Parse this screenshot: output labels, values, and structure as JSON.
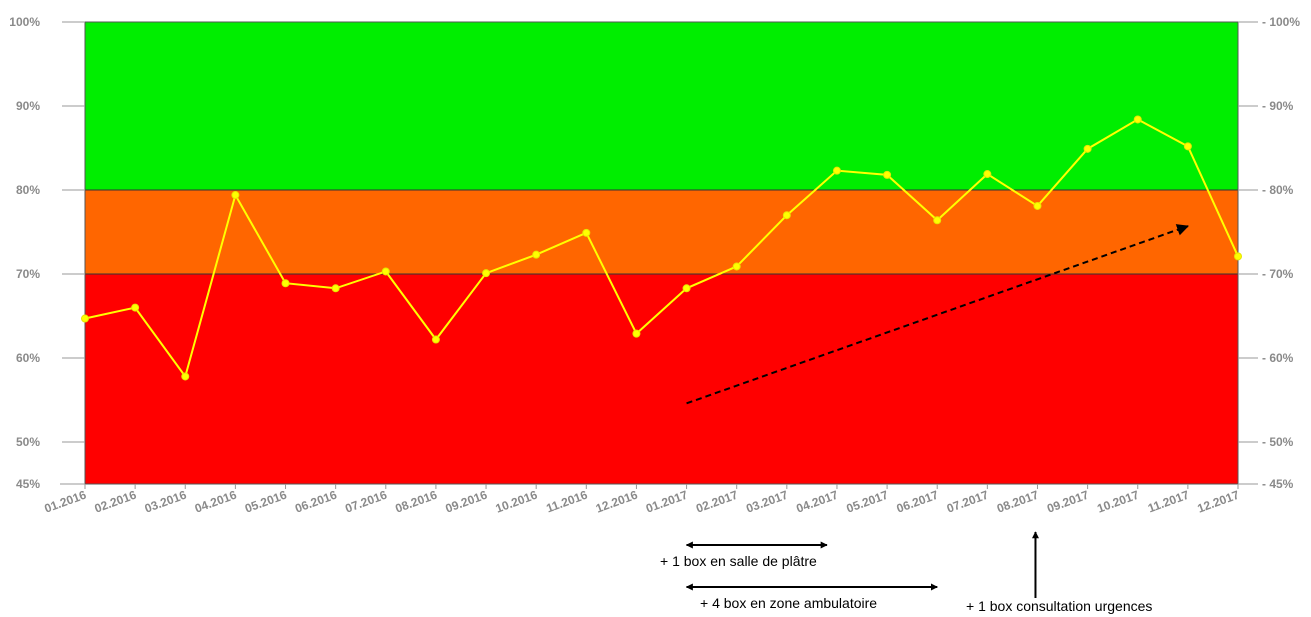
{
  "chart_data": {
    "type": "line",
    "title": "",
    "xlabel": "",
    "ylabel": "",
    "ylim": [
      45,
      100
    ],
    "yticks": [
      "45%",
      "50%",
      "60%",
      "70%",
      "80%",
      "90%",
      "100%"
    ],
    "ytick_values": [
      45,
      50,
      60,
      70,
      80,
      90,
      100
    ],
    "grid": false,
    "legend": "none",
    "categories": [
      "01.2016",
      "02.2016",
      "03.2016",
      "04.2016",
      "05.2016",
      "06.2016",
      "07.2016",
      "08.2016",
      "09.2016",
      "10.2016",
      "11.2016",
      "12.2016",
      "01.2017",
      "02.2017",
      "03.2017",
      "04.2017",
      "05.2017",
      "06.2017",
      "07.2017",
      "08.2017",
      "09.2017",
      "10.2017",
      "11.2017",
      "12.2017"
    ],
    "series": [
      {
        "values": [
          64.7,
          66.0,
          57.8,
          79.4,
          68.9,
          68.3,
          70.3,
          62.2,
          70.1,
          72.3,
          74.9,
          62.9,
          68.3,
          70.9,
          77.0,
          82.3,
          81.8,
          76.4,
          81.9,
          78.1,
          84.9,
          88.4,
          85.2,
          72.1
        ],
        "color": "#ffff00"
      }
    ],
    "bands": [
      {
        "from": 45,
        "to": 70,
        "color": "#ff0000"
      },
      {
        "from": 70,
        "to": 80,
        "color": "#ff6600"
      },
      {
        "from": 80,
        "to": 100,
        "color": "#00ee00"
      }
    ],
    "trend_arrow": {
      "from": {
        "x": "01.2017",
        "y": 54.6
      },
      "to": {
        "x": "11.2017",
        "y": 75.7
      }
    },
    "annotations": [
      {
        "text": "+ 1 box en salle de plâtre",
        "from": "01.2017",
        "to": "04.2017"
      },
      {
        "text": "+ 4 box en zone ambulatoire",
        "from": "01.2017",
        "to": "06.2017"
      },
      {
        "text": "+ 1 box consultation urgences",
        "at": "08.2017"
      }
    ]
  }
}
